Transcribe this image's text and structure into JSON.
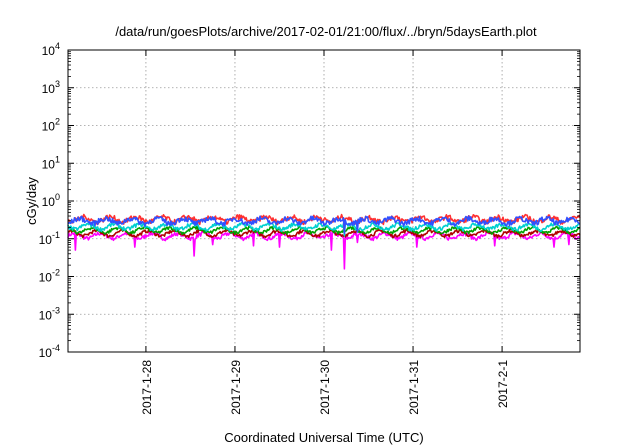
{
  "chart_data": {
    "type": "line",
    "title": "/data/run/goesPlots/archive/2017-02-01/21:00/flux/../bryn/5daysEarth.plot",
    "xlabel": "Coordinated Universal Time (UTC)",
    "ylabel": "cGy/day",
    "yscale": "log",
    "ylim": [
      0.0001,
      10000
    ],
    "xlim": [
      "2017-01-27 03:00",
      "2017-02-01 21:00"
    ],
    "grid": true,
    "legend": "none",
    "y_ticks": [
      {
        "value": 0.0001,
        "base": "10",
        "exp": "-4"
      },
      {
        "value": 0.001,
        "base": "10",
        "exp": "-3"
      },
      {
        "value": 0.01,
        "base": "10",
        "exp": "-2"
      },
      {
        "value": 0.1,
        "base": "10",
        "exp": "-1"
      },
      {
        "value": 1,
        "base": "10",
        "exp": "0"
      },
      {
        "value": 10,
        "base": "10",
        "exp": "1"
      },
      {
        "value": 100,
        "base": "10",
        "exp": "2"
      },
      {
        "value": 1000,
        "base": "10",
        "exp": "3"
      },
      {
        "value": 10000,
        "base": "10",
        "exp": "4"
      }
    ],
    "x_ticks": [
      {
        "date": "2017-01-28",
        "label": "2017-1-28"
      },
      {
        "date": "2017-01-29",
        "label": "2017-1-29"
      },
      {
        "date": "2017-01-30",
        "label": "2017-1-30"
      },
      {
        "date": "2017-01-31",
        "label": "2017-1-31"
      },
      {
        "date": "2017-02-01",
        "label": "2017-2-1"
      }
    ],
    "series": [
      {
        "color": "#ff00ff",
        "level": 0.12,
        "noise": 0.12,
        "dips": [
          [
            "2017-01-27 05:00",
            0.05
          ],
          [
            "2017-01-27 21:00",
            0.06
          ],
          [
            "2017-01-28 13:00",
            0.035
          ],
          [
            "2017-01-28 18:00",
            0.07
          ],
          [
            "2017-01-29 05:00",
            0.065
          ],
          [
            "2017-01-29 12:00",
            0.06
          ],
          [
            "2017-01-30 02:00",
            0.05
          ],
          [
            "2017-01-30 05:30",
            0.016
          ],
          [
            "2017-01-30 09:00",
            0.08
          ],
          [
            "2017-01-31 01:00",
            0.06
          ],
          [
            "2017-01-31 22:00",
            0.065
          ],
          [
            "2017-02-01 14:00",
            0.06
          ],
          [
            "2017-02-01 18:00",
            0.07
          ]
        ]
      },
      {
        "color": "#b00000",
        "level": 0.14,
        "noise": 0.1,
        "dips": []
      },
      {
        "color": "#00a000",
        "level": 0.17,
        "noise": 0.1,
        "dips": []
      },
      {
        "color": "#00d0d0",
        "level": 0.21,
        "noise": 0.12,
        "dips": [
          [
            "2017-01-30 05:30",
            0.12
          ]
        ]
      },
      {
        "color": "#ff3030",
        "level": 0.33,
        "noise": 0.16,
        "dips": [
          [
            "2017-01-30 05:30",
            0.15
          ]
        ]
      },
      {
        "color": "#3050ff",
        "level": 0.3,
        "noise": 0.16,
        "dips": [
          [
            "2017-01-30 05:30",
            0.14
          ],
          [
            "2017-01-30 09:00",
            0.15
          ]
        ]
      }
    ]
  }
}
